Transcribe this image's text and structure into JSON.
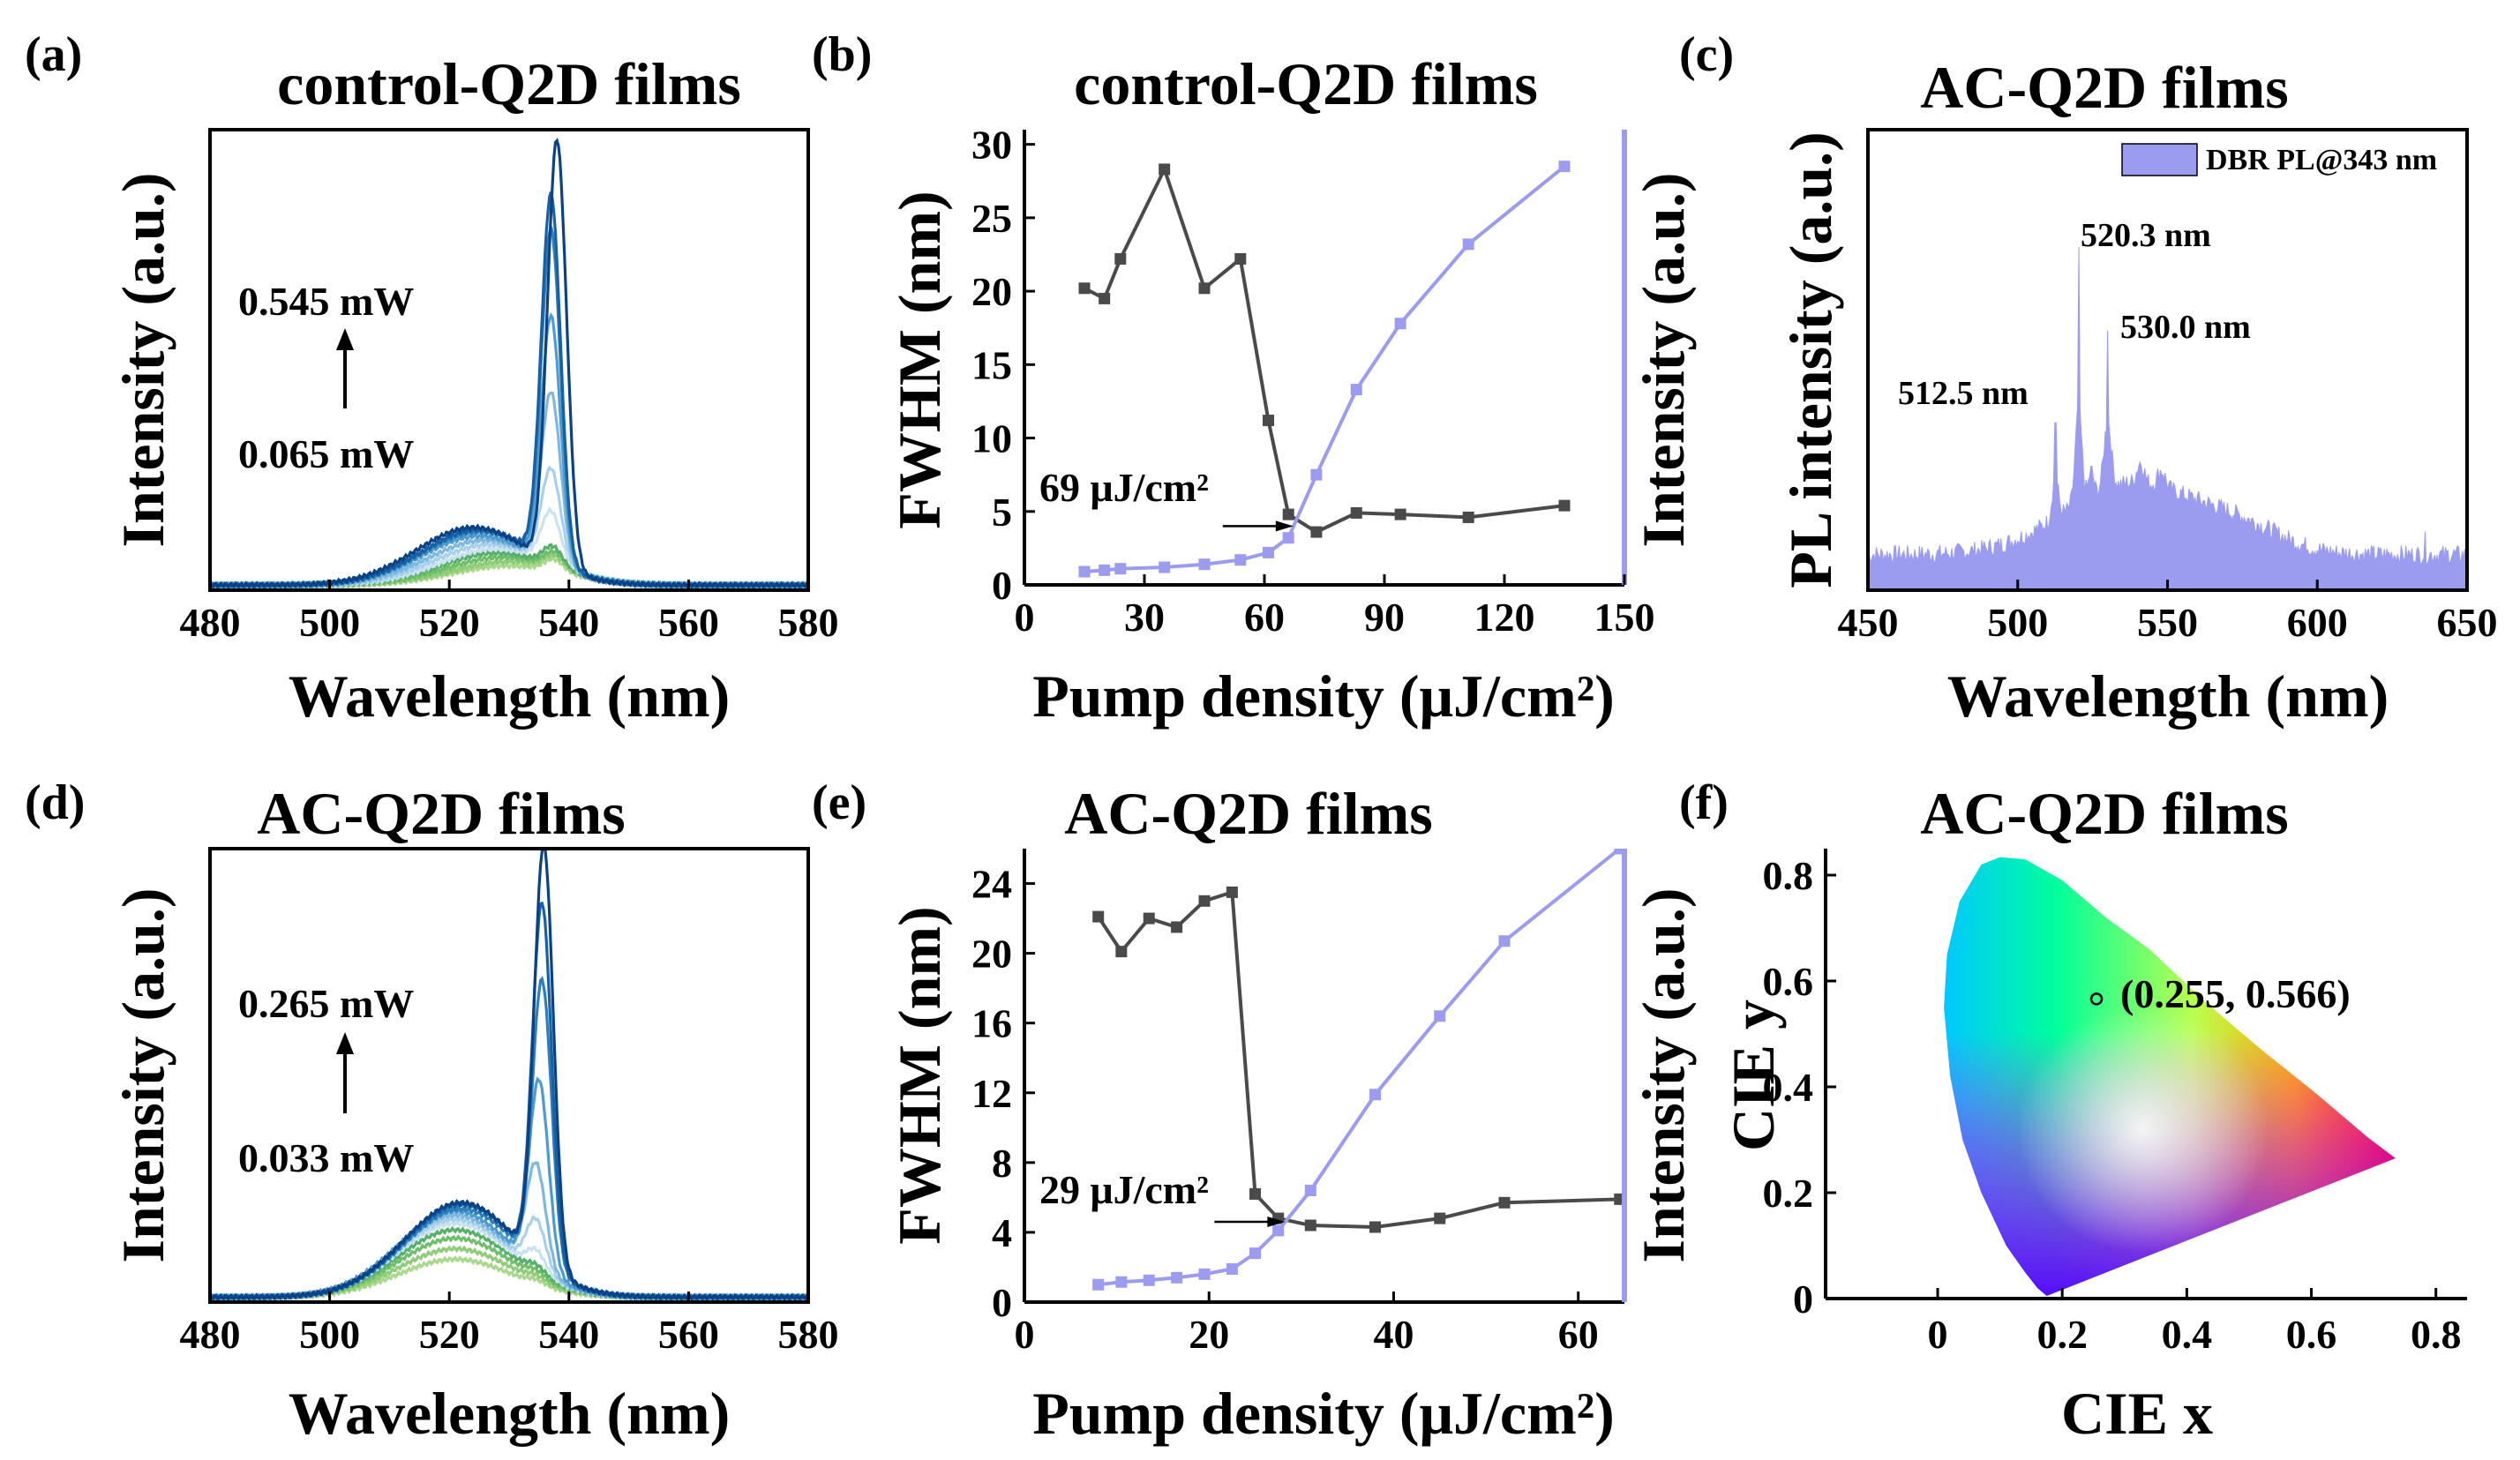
{
  "figure": {
    "panel_count": 6
  },
  "chart_data": [
    {
      "id": "a",
      "type": "line",
      "label": "(a)",
      "title": "control-Q2D films",
      "xlabel": "Wavelength (nm)",
      "ylabel": "Intensity (a.u.)",
      "xlim": [
        480,
        580
      ],
      "ylim": [
        0,
        1.08
      ],
      "xticks": [
        480,
        500,
        520,
        540,
        560,
        580
      ],
      "annotations": {
        "power_high": "0.545 mW",
        "power_low": "0.065 mW"
      },
      "colors": [
        "#a8d88a",
        "#8fcc78",
        "#6fbf6a",
        "#56b06a",
        "#c9e2f1",
        "#a9d0ea",
        "#7db8e0",
        "#4e9ccf",
        "#2c7fbc",
        "#1660a4",
        "#0b4286"
      ],
      "series_params": [
        {
          "peak_x": 537.5,
          "peak_h": 0.028,
          "broad_x": 530,
          "broad_h": 0.045
        },
        {
          "peak_x": 537.5,
          "peak_h": 0.03,
          "broad_x": 530,
          "broad_h": 0.055
        },
        {
          "peak_x": 537.5,
          "peak_h": 0.035,
          "broad_x": 529,
          "broad_h": 0.065
        },
        {
          "peak_x": 537.3,
          "peak_h": 0.045,
          "broad_x": 528,
          "broad_h": 0.075
        },
        {
          "peak_x": 537.0,
          "peak_h": 0.12,
          "broad_x": 528,
          "broad_h": 0.085
        },
        {
          "peak_x": 537.0,
          "peak_h": 0.22,
          "broad_x": 527,
          "broad_h": 0.095
        },
        {
          "peak_x": 537.0,
          "peak_h": 0.4,
          "broad_x": 526,
          "broad_h": 0.105
        },
        {
          "peak_x": 537.0,
          "peak_h": 0.58,
          "broad_x": 525,
          "broad_h": 0.115
        },
        {
          "peak_x": 537.0,
          "peak_h": 0.78,
          "broad_x": 525,
          "broad_h": 0.125
        },
        {
          "peak_x": 537.0,
          "peak_h": 0.86,
          "broad_x": 525,
          "broad_h": 0.13
        },
        {
          "peak_x": 538.0,
          "peak_h": 1.0,
          "broad_x": 524,
          "broad_h": 0.135
        }
      ]
    },
    {
      "id": "b",
      "type": "line",
      "label": "(b)",
      "title": "control-Q2D films",
      "xlabel": "Pump density (μJ/cm²)",
      "ylabel": "FWHM (nm)",
      "ylabel_right": "Intensity (a.u.)",
      "xlim": [
        0,
        150
      ],
      "ylim": [
        0,
        31
      ],
      "xticks": [
        0,
        30,
        60,
        90,
        120,
        150
      ],
      "yticks": [
        0,
        5,
        10,
        15,
        20,
        25,
        30
      ],
      "threshold_label": "69 μJ/cm²",
      "threshold_x": 69,
      "threshold_y": 4.0,
      "series": [
        {
          "name": "FWHM",
          "color": "#4a4a4a",
          "x": [
            15,
            20,
            24,
            35,
            45,
            54,
            61,
            66,
            73,
            83,
            94,
            111,
            135
          ],
          "y": [
            20.2,
            19.5,
            22.2,
            28.3,
            20.2,
            22.2,
            11.2,
            4.8,
            3.6,
            4.9,
            4.8,
            4.6,
            5.4
          ]
        },
        {
          "name": "Intensity",
          "color": "#9b9bf0",
          "x": [
            15,
            20,
            24,
            35,
            45,
            54,
            61,
            66,
            73,
            83,
            94,
            111,
            135
          ],
          "y": [
            0.9,
            1.0,
            1.1,
            1.2,
            1.4,
            1.7,
            2.2,
            3.2,
            7.5,
            13.3,
            17.8,
            23.2,
            28.5
          ]
        }
      ]
    },
    {
      "id": "c",
      "type": "area",
      "label": "(c)",
      "title": "AC-Q2D films",
      "xlabel": "Wavelength (nm)",
      "ylabel": "PL intensity (a.u.)",
      "xlim": [
        450,
        650
      ],
      "ylim": [
        0,
        1.1
      ],
      "xticks": [
        450,
        500,
        550,
        600,
        650
      ],
      "color": "#9b9bf0",
      "legend": "DBR PL@343 nm",
      "legend_position": "top-right",
      "peaks": [
        {
          "label": "512.5 nm",
          "x": 512.5,
          "y": 0.4
        },
        {
          "label": "520.3 nm",
          "x": 520.3,
          "y": 0.82
        },
        {
          "label": "530.0 nm",
          "x": 530.0,
          "y": 0.62
        }
      ]
    },
    {
      "id": "d",
      "type": "line",
      "label": "(d)",
      "title": "AC-Q2D films",
      "xlabel": "Wavelength (nm)",
      "ylabel": "Intensity (a.u.)",
      "xlim": [
        480,
        580
      ],
      "ylim": [
        0,
        1.08
      ],
      "xticks": [
        480,
        500,
        520,
        540,
        560,
        580
      ],
      "annotations": {
        "power_high": "0.265 mW",
        "power_low": "0.033 mW"
      },
      "colors": [
        "#a8d88a",
        "#8fcc78",
        "#6fbf6a",
        "#56b06a",
        "#c9e2f1",
        "#a9d0ea",
        "#7db8e0",
        "#4e9ccf",
        "#2c7fbc",
        "#1660a4",
        "#0b4286"
      ],
      "series_params": [
        {
          "peak_x": 534.5,
          "peak_h": 0.01,
          "broad_x": 521,
          "broad_h": 0.09
        },
        {
          "peak_x": 534.5,
          "peak_h": 0.012,
          "broad_x": 521,
          "broad_h": 0.115
        },
        {
          "peak_x": 534.5,
          "peak_h": 0.015,
          "broad_x": 521,
          "broad_h": 0.14
        },
        {
          "peak_x": 534.5,
          "peak_h": 0.02,
          "broad_x": 521,
          "broad_h": 0.16
        },
        {
          "peak_x": 534.5,
          "peak_h": 0.05,
          "broad_x": 521,
          "broad_h": 0.175
        },
        {
          "peak_x": 534.5,
          "peak_h": 0.12,
          "broad_x": 521,
          "broad_h": 0.185
        },
        {
          "peak_x": 534.5,
          "peak_h": 0.25,
          "broad_x": 521,
          "broad_h": 0.195
        },
        {
          "peak_x": 535.0,
          "peak_h": 0.45,
          "broad_x": 521,
          "broad_h": 0.205
        },
        {
          "peak_x": 535.5,
          "peak_h": 0.68,
          "broad_x": 522,
          "broad_h": 0.21
        },
        {
          "peak_x": 535.5,
          "peak_h": 0.86,
          "broad_x": 522,
          "broad_h": 0.22
        },
        {
          "peak_x": 535.8,
          "peak_h": 1.0,
          "broad_x": 522,
          "broad_h": 0.225
        }
      ]
    },
    {
      "id": "e",
      "type": "line",
      "label": "(e)",
      "title": "AC-Q2D films",
      "xlabel": "Pump density (μJ/cm²)",
      "ylabel": "FWHM (nm)",
      "ylabel_right": "Intensity (a.u.)",
      "xlim": [
        0,
        65
      ],
      "ylim": [
        0,
        26
      ],
      "xticks": [
        0,
        20,
        40,
        60
      ],
      "yticks": [
        0,
        4,
        8,
        12,
        16,
        20,
        24
      ],
      "threshold_label": "29 μJ/cm²",
      "threshold_x": 29,
      "threshold_y": 4.6,
      "series": [
        {
          "name": "FWHM",
          "color": "#4a4a4a",
          "x": [
            8,
            10.5,
            13.5,
            16.5,
            19.5,
            22.5,
            25,
            27.5,
            31,
            38,
            45,
            52,
            64.5
          ],
          "y": [
            22.1,
            20.1,
            22.0,
            21.5,
            23.0,
            23.5,
            6.2,
            4.8,
            4.4,
            4.3,
            4.8,
            5.7,
            5.9
          ]
        },
        {
          "name": "Intensity",
          "color": "#9b9bf0",
          "x": [
            8,
            10.5,
            13.5,
            16.5,
            19.5,
            22.5,
            25,
            27.5,
            31,
            38,
            45,
            52,
            64.5
          ],
          "y": [
            1.0,
            1.15,
            1.25,
            1.4,
            1.6,
            1.9,
            2.8,
            4.1,
            6.4,
            11.9,
            16.4,
            20.7,
            26.0
          ]
        }
      ]
    },
    {
      "id": "f",
      "type": "scatter",
      "label": "(f)",
      "title": "AC-Q2D films",
      "xlabel": "CIE x",
      "ylabel": "CIE y",
      "xlim": [
        -0.18,
        0.85
      ],
      "ylim": [
        0,
        0.85
      ],
      "xticks": [
        0,
        0.2,
        0.4,
        0.6,
        0.8
      ],
      "xtick_labels": [
        "0",
        "0.2",
        "0.4",
        "0.6",
        "0.8"
      ],
      "yticks": [
        0,
        0.2,
        0.4,
        0.6,
        0.8
      ],
      "ytick_labels": [
        "0",
        "0.2",
        "0.4",
        "0.6",
        "0.8"
      ],
      "point": {
        "x": 0.255,
        "y": 0.566,
        "label": "(0.255, 0.566)"
      }
    }
  ]
}
